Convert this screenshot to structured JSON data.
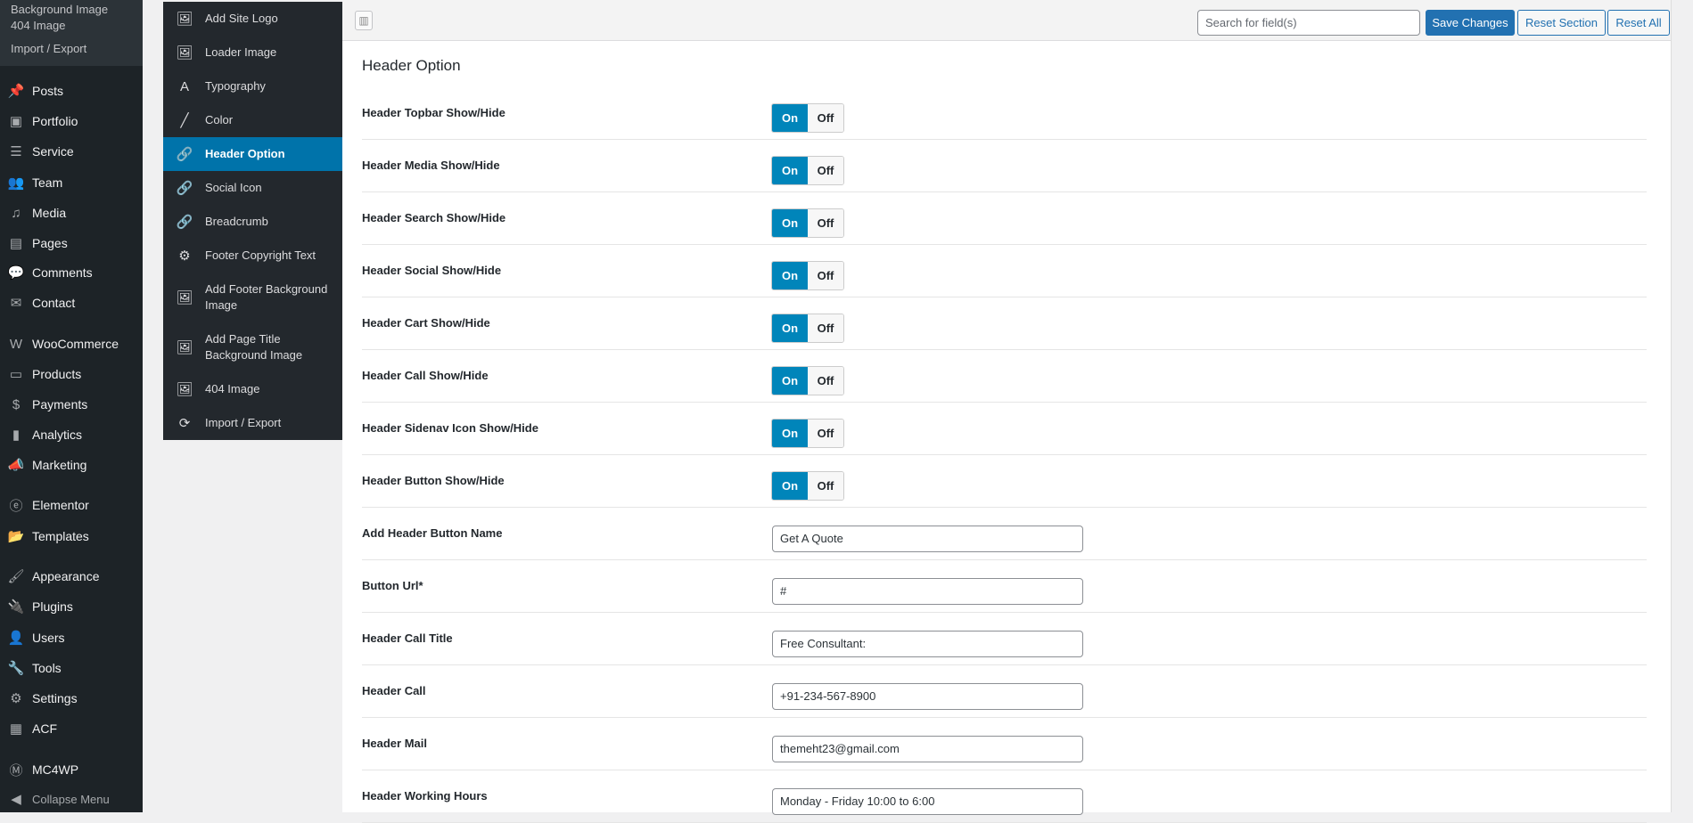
{
  "wp_menu": {
    "submenu": [
      "Background Image",
      "404 Image",
      "Import / Export"
    ],
    "items": [
      {
        "label": "Posts",
        "icon": "pin-icon",
        "glyph": "📌"
      },
      {
        "label": "Portfolio",
        "icon": "portfolio-icon",
        "glyph": "▣"
      },
      {
        "label": "Service",
        "icon": "list-icon",
        "glyph": "☰"
      },
      {
        "label": "Team",
        "icon": "team-icon",
        "glyph": "👥"
      },
      {
        "label": "Media",
        "icon": "media-icon",
        "glyph": "♫"
      },
      {
        "label": "Pages",
        "icon": "pages-icon",
        "glyph": "▤"
      },
      {
        "label": "Comments",
        "icon": "comment-icon",
        "glyph": "💬"
      },
      {
        "label": "Contact",
        "icon": "mail-icon",
        "glyph": "✉"
      },
      {
        "label": "WooCommerce",
        "icon": "woocommerce-icon",
        "glyph": "W"
      },
      {
        "label": "Products",
        "icon": "archive-icon",
        "glyph": "▭"
      },
      {
        "label": "Payments",
        "icon": "dollar-icon",
        "glyph": "$"
      },
      {
        "label": "Analytics",
        "icon": "bar-chart-icon",
        "glyph": "▮"
      },
      {
        "label": "Marketing",
        "icon": "megaphone-icon",
        "glyph": "📣"
      },
      {
        "label": "Elementor",
        "icon": "elementor-icon",
        "glyph": "ⓔ"
      },
      {
        "label": "Templates",
        "icon": "folder-icon",
        "glyph": "📂"
      },
      {
        "label": "Appearance",
        "icon": "brush-icon",
        "glyph": "🖌"
      },
      {
        "label": "Plugins",
        "icon": "plug-icon",
        "glyph": "🔌"
      },
      {
        "label": "Users",
        "icon": "user-icon",
        "glyph": "👤"
      },
      {
        "label": "Tools",
        "icon": "wrench-icon",
        "glyph": "🔧"
      },
      {
        "label": "Settings",
        "icon": "sliders-icon",
        "glyph": "⚙"
      },
      {
        "label": "ACF",
        "icon": "table-icon",
        "glyph": "▦"
      },
      {
        "label": "MC4WP",
        "icon": "mc4wp-icon",
        "glyph": "Ⓜ"
      },
      {
        "label": "Collapse Menu",
        "icon": "collapse-icon",
        "glyph": "◀"
      }
    ]
  },
  "redux_menu": {
    "items": [
      {
        "label": "Add Site Logo",
        "icon": "image-icon",
        "glyph": "🖼"
      },
      {
        "label": "Loader Image",
        "icon": "image-icon",
        "glyph": "🖼"
      },
      {
        "label": "Typography",
        "icon": "font-icon",
        "glyph": "A"
      },
      {
        "label": "Color",
        "icon": "brush-icon",
        "glyph": "╱"
      },
      {
        "label": "Header Option",
        "icon": "link-icon",
        "glyph": "🔗",
        "active": true
      },
      {
        "label": "Social Icon",
        "icon": "link-icon",
        "glyph": "🔗"
      },
      {
        "label": "Breadcrumb",
        "icon": "link-icon",
        "glyph": "🔗"
      },
      {
        "label": "Footer Copyright Text",
        "icon": "gear-icon",
        "glyph": "⚙"
      },
      {
        "label": "Add Footer Background Image",
        "icon": "image-icon",
        "glyph": "🖼"
      },
      {
        "label": "Add Page Title Background Image",
        "icon": "image-icon",
        "glyph": "🖼"
      },
      {
        "label": "404 Image",
        "icon": "image-icon",
        "glyph": "🖼"
      },
      {
        "label": "Import / Export",
        "icon": "refresh-icon",
        "glyph": "⟳"
      }
    ]
  },
  "toolbar": {
    "search_placeholder": "Search for field(s)",
    "save": "Save Changes",
    "reset_section": "Reset Section",
    "reset_all": "Reset All"
  },
  "section": {
    "title": "Header Option",
    "accent": "#0085ba",
    "toggle_on": "On",
    "toggle_off": "Off",
    "fields": [
      {
        "label": "Header Topbar Show/Hide",
        "type": "toggle",
        "value": "On"
      },
      {
        "label": "Header Media Show/Hide",
        "type": "toggle",
        "value": "On"
      },
      {
        "label": "Header Search Show/Hide",
        "type": "toggle",
        "value": "On"
      },
      {
        "label": "Header Social Show/Hide",
        "type": "toggle",
        "value": "On"
      },
      {
        "label": "Header Cart Show/Hide",
        "type": "toggle",
        "value": "On"
      },
      {
        "label": "Header Call Show/Hide",
        "type": "toggle",
        "value": "On"
      },
      {
        "label": "Header Sidenav Icon Show/Hide",
        "type": "toggle",
        "value": "On"
      },
      {
        "label": "Header Button Show/Hide",
        "type": "toggle",
        "value": "On"
      },
      {
        "label": "Add Header Button Name",
        "type": "text",
        "value": "Get A Quote"
      },
      {
        "label": "Button Url*",
        "type": "text",
        "value": "#"
      },
      {
        "label": "Header Call Title",
        "type": "text",
        "value": "Free Consultant:"
      },
      {
        "label": "Header Call",
        "type": "text",
        "value": "+91-234-567-8900"
      },
      {
        "label": "Header Mail",
        "type": "text",
        "value": "themeht23@gmail.com"
      },
      {
        "label": "Header Working Hours",
        "type": "text",
        "value": "Monday - Friday 10:00 to 6:00"
      }
    ]
  }
}
